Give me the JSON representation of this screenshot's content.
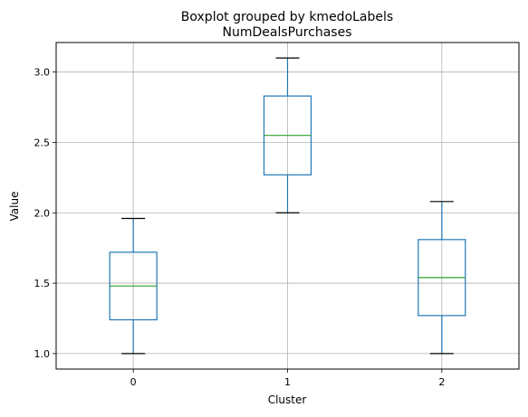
{
  "chart_data": {
    "type": "box",
    "suptitle": "Boxplot grouped by kmedoLabels",
    "title": "NumDealsPurchases",
    "xlabel": "Cluster",
    "ylabel": "Value",
    "ylim": [
      0.89,
      3.21
    ],
    "yticks": [
      1.0,
      1.5,
      2.0,
      2.5,
      3.0
    ],
    "ytick_labels": [
      "1.0",
      "1.5",
      "2.0",
      "2.5",
      "3.0"
    ],
    "grid": true,
    "categories": [
      "0",
      "1",
      "2"
    ],
    "boxes": [
      {
        "category": "0",
        "whisker_low": 1.0,
        "q1": 1.24,
        "median": 1.48,
        "q3": 1.72,
        "whisker_high": 1.96
      },
      {
        "category": "1",
        "whisker_low": 2.0,
        "q1": 2.27,
        "median": 2.55,
        "q3": 2.83,
        "whisker_high": 3.1
      },
      {
        "category": "2",
        "whisker_low": 1.0,
        "q1": 1.27,
        "median": 1.54,
        "q3": 1.81,
        "whisker_high": 2.08
      }
    ],
    "colors": {
      "box": "#1f77b4",
      "median": "#2ca02c",
      "cap": "#000000",
      "grid": "#b0b0b0"
    }
  }
}
